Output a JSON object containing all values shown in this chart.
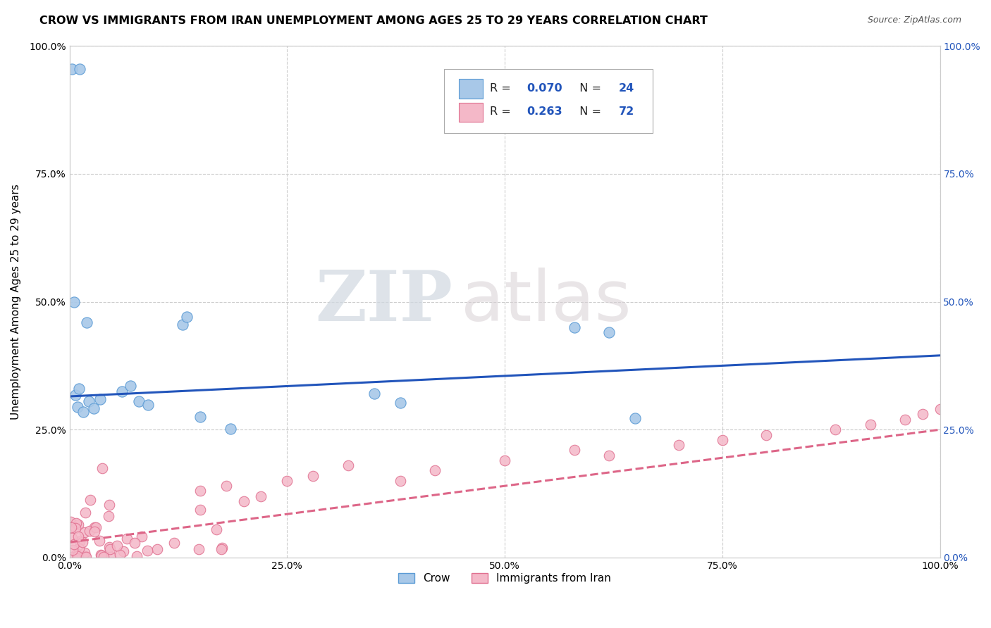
{
  "title": "CROW VS IMMIGRANTS FROM IRAN UNEMPLOYMENT AMONG AGES 25 TO 29 YEARS CORRELATION CHART",
  "source": "Source: ZipAtlas.com",
  "ylabel": "Unemployment Among Ages 25 to 29 years",
  "xlim": [
    0,
    1
  ],
  "ylim": [
    0,
    1
  ],
  "crow_color": "#a8c8e8",
  "crow_edge_color": "#5b9bd5",
  "iran_color": "#f4b8c8",
  "iran_edge_color": "#e07090",
  "crow_line_color": "#2255bb",
  "iran_line_color": "#dd6688",
  "number_color": "#2255bb",
  "R_crow": 0.07,
  "N_crow": 24,
  "R_iran": 0.263,
  "N_iran": 72,
  "watermark_zip": "ZIP",
  "watermark_atlas": "atlas",
  "grid_color": "#cccccc",
  "background_color": "#ffffff",
  "right_tick_color": "#2255bb"
}
